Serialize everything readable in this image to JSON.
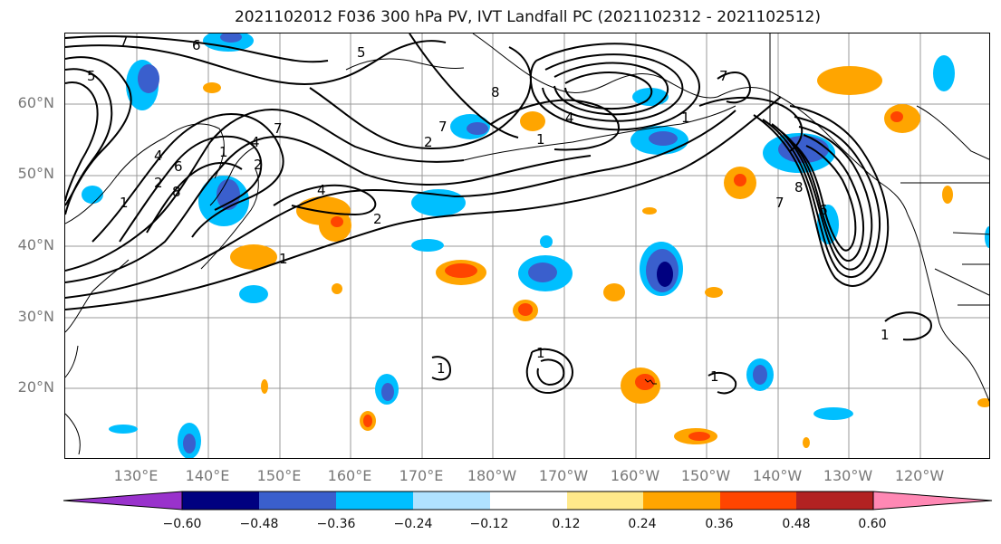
{
  "title": "2021102012 F036 300 hPa PV, IVT Landfall PC (2021102312 - 2021102512)",
  "lat_labels": [
    "60°N",
    "50°N",
    "40°N",
    "30°N",
    "20°N"
  ],
  "lon_labels": [
    "130°E",
    "140°E",
    "150°E",
    "160°E",
    "170°E",
    "180°W",
    "170°W",
    "160°W",
    "150°W",
    "140°W",
    "130°W",
    "120°W"
  ],
  "colorbar": {
    "ticks": [
      "−0.60",
      "−0.48",
      "−0.36",
      "−0.24",
      "−0.12",
      "0.12",
      "0.24",
      "0.36",
      "0.48",
      "0.60"
    ],
    "colors": [
      "#9932cc",
      "#000080",
      "#3a5fcd",
      "#00bfff",
      "#b0e2ff",
      "#ffffff",
      "#ffe98a",
      "#ffa500",
      "#ff4500",
      "#b22222",
      "#ff88b4"
    ]
  },
  "contour_labels": [
    "7",
    "5",
    "6",
    "4",
    "2",
    "1",
    "8",
    "1",
    "4",
    "7",
    "5",
    "6",
    "7",
    "4",
    "8",
    "1",
    "2",
    "1",
    "2",
    "4",
    "1",
    "2",
    "7",
    "8",
    "6",
    "7",
    "1",
    "1",
    "1",
    "1"
  ]
}
